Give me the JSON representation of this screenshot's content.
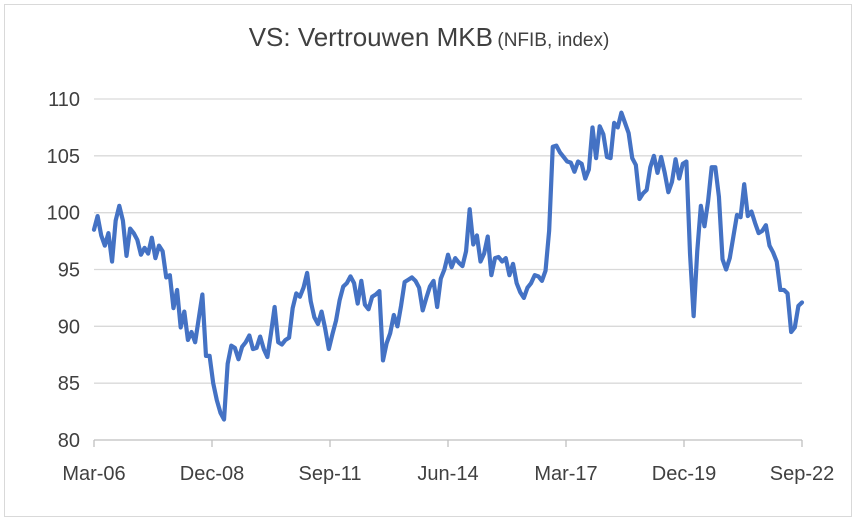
{
  "chart_data": {
    "type": "line",
    "title": "VS: Vertrouwen MKB",
    "subtitle": "(NFIB, index)",
    "xlabel": "",
    "ylabel": "",
    "ylim": [
      80,
      110
    ],
    "yticks": [
      80,
      85,
      90,
      95,
      100,
      105,
      110
    ],
    "x_tick_labels": [
      "Mar-06",
      "Dec-08",
      "Sep-11",
      "Jun-14",
      "Mar-17",
      "Dec-19",
      "Sep-22"
    ],
    "grid": "horizontal",
    "legend": "none",
    "line_color": "#4472c4",
    "series": [
      {
        "values": [
          98.5,
          99.7,
          98.0,
          97.1,
          98.2,
          95.7,
          99.3,
          100.6,
          99.3,
          96.2,
          98.6,
          98.2,
          97.6,
          96.3,
          96.9,
          96.4,
          97.8,
          96.0,
          97.1,
          96.6,
          94.3,
          94.5,
          91.6,
          93.2,
          89.9,
          91.3,
          88.8,
          89.5,
          88.6,
          90.7,
          92.8,
          87.4,
          87.4,
          85.0,
          83.5,
          82.4,
          81.8,
          86.7,
          88.3,
          88.1,
          87.1,
          88.2,
          88.6,
          89.2,
          88.0,
          88.1,
          89.1,
          88.0,
          87.3,
          89.4,
          91.7,
          88.6,
          88.4,
          88.8,
          89.0,
          91.6,
          92.9,
          92.6,
          93.4,
          94.7,
          92.2,
          90.8,
          90.2,
          91.3,
          89.8,
          88.0,
          89.3,
          90.5,
          92.3,
          93.5,
          93.8,
          94.4,
          93.8,
          92.0,
          94.0,
          91.9,
          91.5,
          92.6,
          92.8,
          93.1,
          87.0,
          88.5,
          89.4,
          91.0,
          90.0,
          91.8,
          93.9,
          94.1,
          94.3,
          94.0,
          93.4,
          91.4,
          92.5,
          93.5,
          94.0,
          91.7,
          94.2,
          95.0,
          96.3,
          95.2,
          96.0,
          95.6,
          95.3,
          96.6,
          100.3,
          97.2,
          98.0,
          95.7,
          96.4,
          97.9,
          94.5,
          96.0,
          96.1,
          95.7,
          96.0,
          94.5,
          95.5,
          93.8,
          93.0,
          92.5,
          93.4,
          93.8,
          94.5,
          94.4,
          94.0,
          94.9,
          98.4,
          105.8,
          105.9,
          105.3,
          104.9,
          104.5,
          104.4,
          103.6,
          104.5,
          104.3,
          103.0,
          103.8,
          107.5,
          104.8,
          107.6,
          106.9,
          104.9,
          104.8,
          107.9,
          107.5,
          108.8,
          107.9,
          107.0,
          104.8,
          104.2,
          101.2,
          101.7,
          102.0,
          104.0,
          105.0,
          103.5,
          104.9,
          103.5,
          101.8,
          102.7,
          104.7,
          103.0,
          104.3,
          104.5,
          96.4,
          90.9,
          96.6,
          100.6,
          98.8,
          101.0,
          104.0,
          104.0,
          101.4,
          95.9,
          95.0,
          96.0,
          97.9,
          99.8,
          99.6,
          102.5,
          99.7,
          100.1,
          99.1,
          98.2,
          98.4,
          98.9,
          97.1,
          96.5,
          95.7,
          93.2,
          93.2,
          92.9,
          89.5,
          89.9,
          91.8,
          92.1
        ]
      }
    ]
  }
}
